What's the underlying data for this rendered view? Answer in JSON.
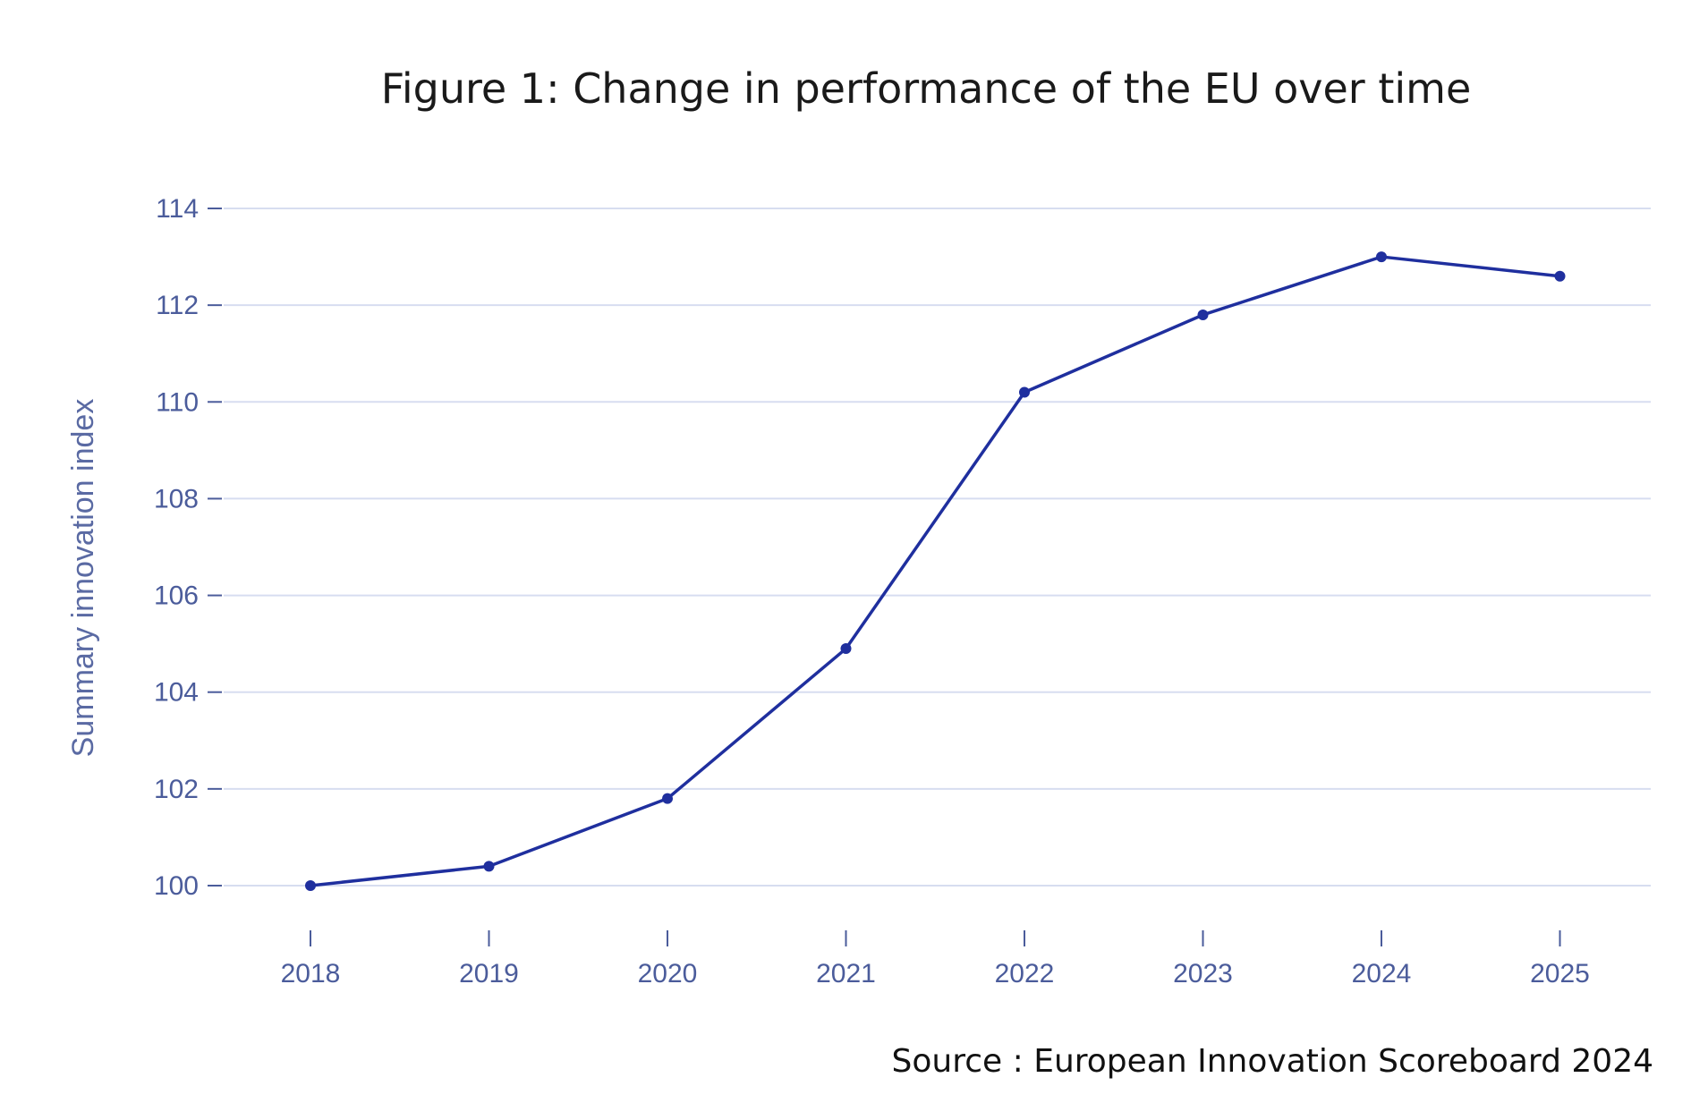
{
  "chart_data": {
    "type": "line",
    "title": "Figure 1: Change in performance of the EU over time",
    "xlabel": "",
    "ylabel": "Summary innovation index",
    "x": [
      "2018",
      "2019",
      "2020",
      "2021",
      "2022",
      "2023",
      "2024",
      "2025"
    ],
    "series": [
      {
        "values": [
          100.0,
          100.4,
          101.8,
          104.9,
          110.2,
          111.8,
          113.0,
          112.6
        ]
      }
    ],
    "yticks": [
      100,
      102,
      104,
      106,
      108,
      110,
      112,
      114
    ],
    "ylim": [
      100,
      114
    ],
    "grid": true,
    "legend": "none",
    "colors": {
      "line": "#1f2f9e",
      "grid": "#d7ddf0",
      "tick_text": "#4b5c9b",
      "axis_title": "#5a6aa3"
    }
  },
  "source": "Source : European Innovation Scoreboard 2024"
}
